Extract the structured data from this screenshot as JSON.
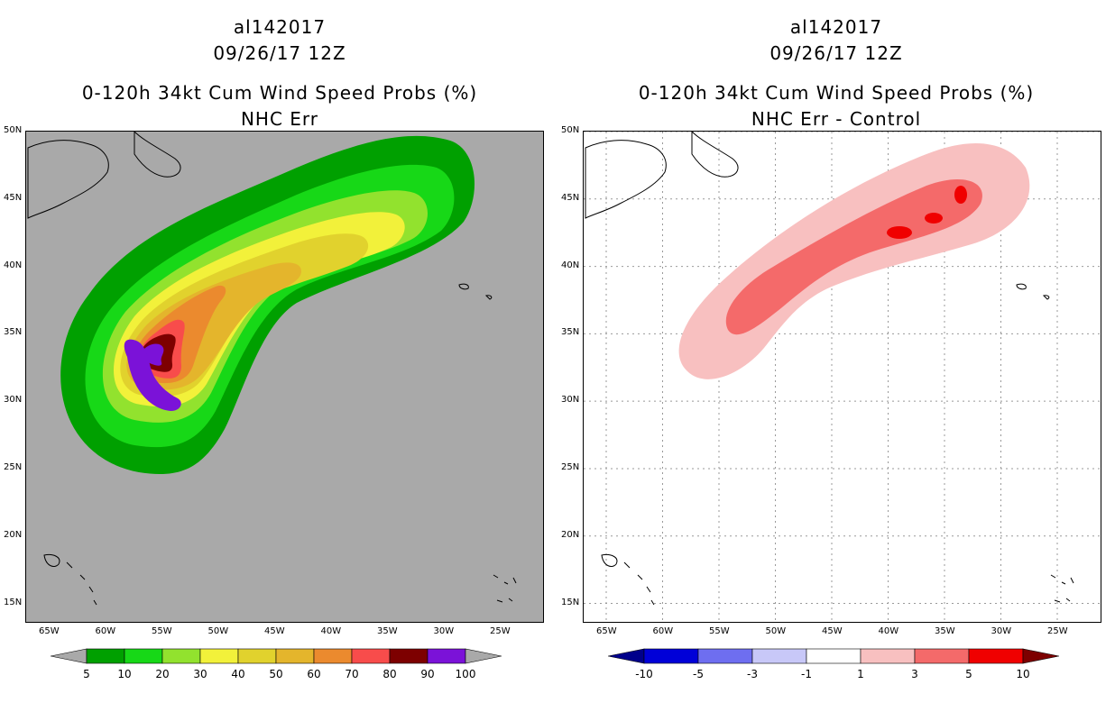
{
  "left": {
    "storm_id": "al142017",
    "datetime": "09/26/17 12Z",
    "product": "0-120h 34kt Cum Wind Speed Probs (%)",
    "subtitle": "NHC Err",
    "background": "#a9a9a9",
    "colorbar": {
      "labels": [
        "5",
        "10",
        "20",
        "30",
        "40",
        "50",
        "60",
        "70",
        "80",
        "90",
        "100"
      ],
      "colors": [
        "#00a000",
        "#17d817",
        "#92e22e",
        "#f2f13a",
        "#e1d22d",
        "#e4b52c",
        "#eb8a2e",
        "#f84c4b",
        "#7d0000",
        "#7b12d8"
      ],
      "under_color": "#a9a9a9",
      "over_color": "#a9a9a9"
    }
  },
  "right": {
    "storm_id": "al142017",
    "datetime": "09/26/17 12Z",
    "product": "0-120h 34kt Cum Wind Speed Probs (%)",
    "subtitle": "NHC Err - Control",
    "background": "#ffffff",
    "colorbar": {
      "labels": [
        "-10",
        "-5",
        "-3",
        "-1",
        "1",
        "3",
        "5",
        "10"
      ],
      "colors": [
        "#0000d8",
        "#6e6ef0",
        "#c8c8f8",
        "#ffffff",
        "#f8c0c0",
        "#f46a6a",
        "#f00000"
      ],
      "under_color": "#00008b",
      "over_color": "#7d0000"
    }
  },
  "axes": {
    "lat_labels": [
      "50N",
      "45N",
      "40N",
      "35N",
      "30N",
      "25N",
      "20N",
      "15N"
    ],
    "lon_labels": [
      "65W",
      "60W",
      "55W",
      "50W",
      "45W",
      "40W",
      "35W",
      "30W",
      "25W"
    ],
    "lat_range": [
      13.5,
      50
    ],
    "lon_range": [
      67,
      21
    ]
  }
}
